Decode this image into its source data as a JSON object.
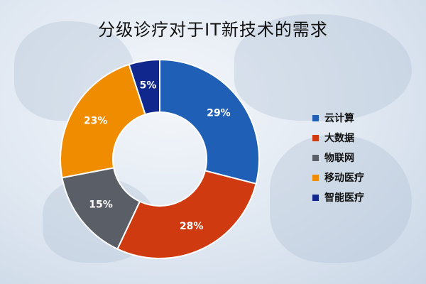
{
  "chart_data": {
    "type": "pie",
    "donut": true,
    "title": "分级诊疗对于IT新技术的需求",
    "categories": [
      "云计算",
      "大数据",
      "物联网",
      "移动医疗",
      "智能医疗"
    ],
    "values": [
      29,
      28,
      15,
      23,
      5
    ],
    "labels": [
      "29%",
      "28%",
      "15%",
      "23%",
      "5%"
    ],
    "colors": [
      "#1f5fb5",
      "#cf3a10",
      "#5a5e66",
      "#f08c00",
      "#10288e"
    ],
    "legend_position": "right"
  }
}
